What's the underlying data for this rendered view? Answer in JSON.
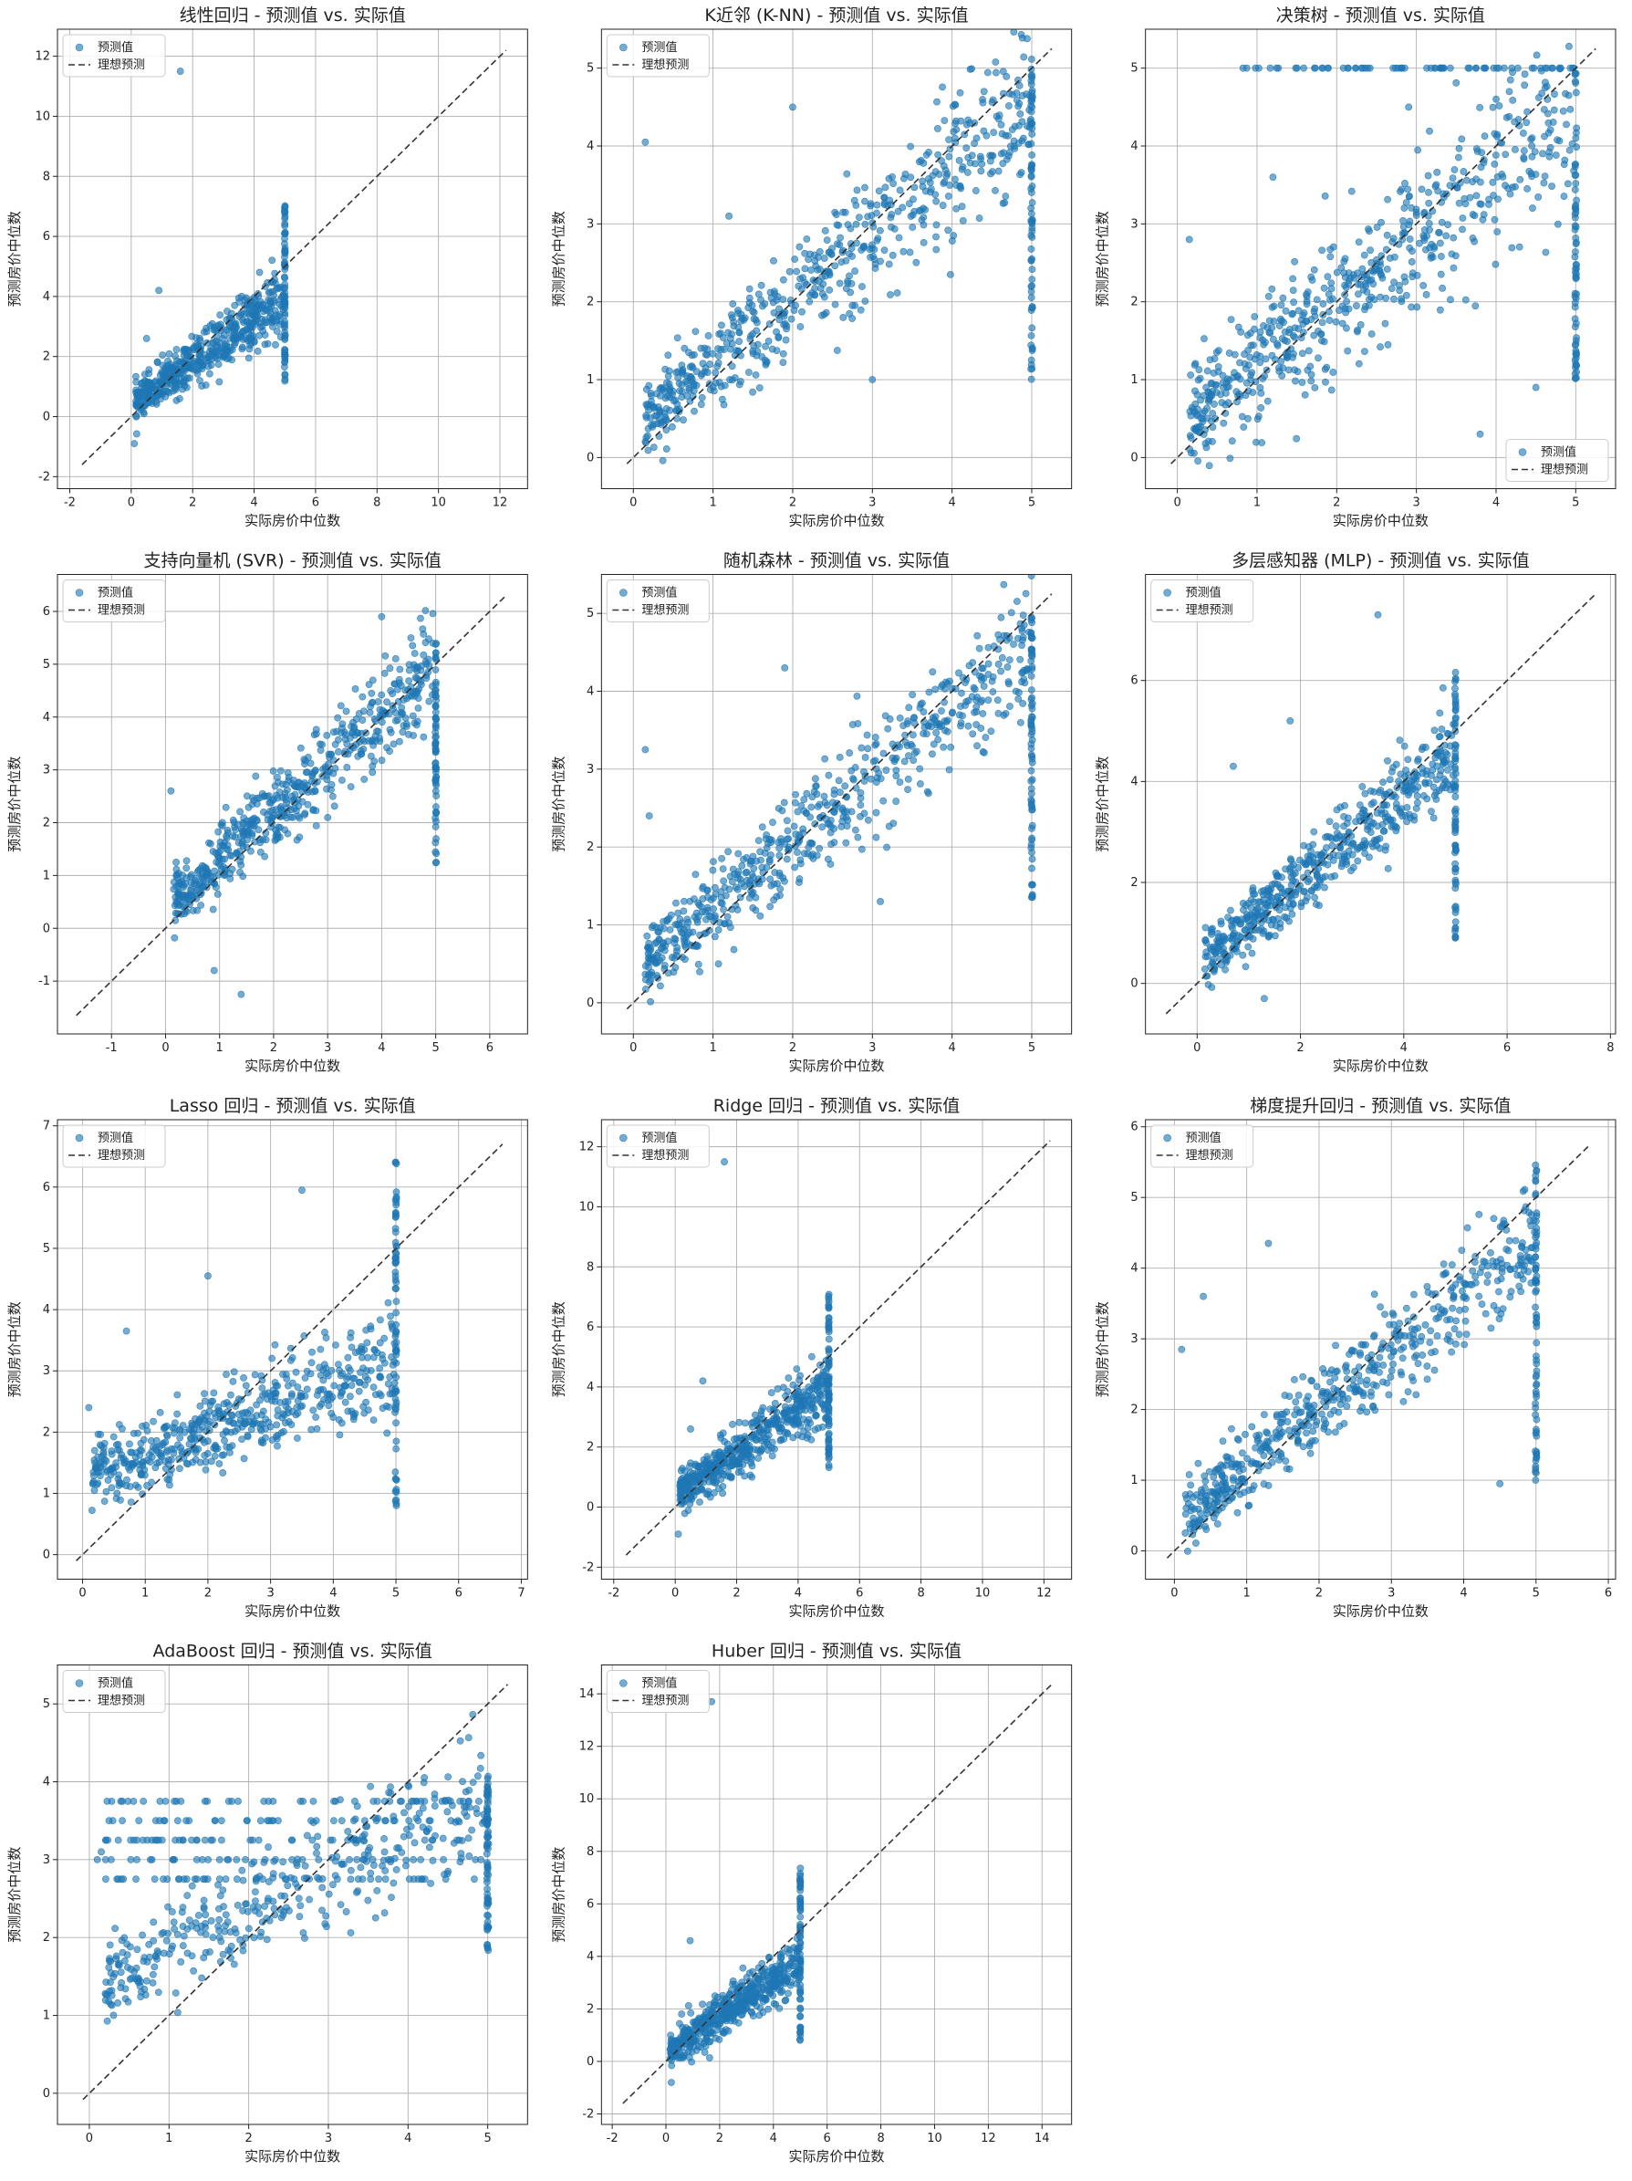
{
  "legend_labels": {
    "predicted": "预测值",
    "ideal": "理想预测"
  },
  "colors": {
    "points": "#1f77b4",
    "ideal_line": "#333333",
    "grid": "#b0b0b0"
  },
  "chart_data": [
    {
      "type": "scatter",
      "title": "线性回归 - 预测值 vs. 实际值",
      "xlabel": "实际房价中位数",
      "ylabel": "预测房价中位数",
      "xlim": [
        -2.4,
        12.9
      ],
      "ylim": [
        -2.4,
        12.9
      ],
      "xticks": [
        -2,
        0,
        2,
        4,
        6,
        8,
        10,
        12
      ],
      "yticks": [
        -2,
        0,
        2,
        4,
        6,
        8,
        10,
        12
      ],
      "ideal_range": [
        -1.6,
        12.2
      ],
      "legend_position": "upper-left",
      "grid": true,
      "cloud": {
        "x_range": [
          0.15,
          5.0
        ],
        "slope": 0.72,
        "intercept": 0.38,
        "spread": 0.55,
        "count": 520,
        "cap_x": 5.0,
        "cap_y_range": [
          1.0,
          7.2
        ]
      },
      "outliers": [
        [
          1.6,
          11.5
        ],
        [
          0.9,
          4.2
        ],
        [
          0.5,
          2.6
        ],
        [
          0.1,
          -0.9
        ]
      ]
    },
    {
      "type": "scatter",
      "title": "K近邻 (K-NN) - 预测值 vs. 实际值",
      "xlabel": "实际房价中位数",
      "ylabel": "预测房价中位数",
      "xlim": [
        -0.4,
        5.5
      ],
      "ylim": [
        -0.4,
        5.5
      ],
      "xticks": [
        0,
        1,
        2,
        3,
        4,
        5
      ],
      "yticks": [
        0,
        1,
        2,
        3,
        4,
        5
      ],
      "ideal_range": [
        -0.08,
        5.25
      ],
      "legend_position": "upper-left",
      "grid": true,
      "cloud": {
        "x_range": [
          0.15,
          5.0
        ],
        "slope": 0.82,
        "intercept": 0.38,
        "spread": 0.5,
        "count": 600,
        "cap_x": 5.0,
        "cap_y_range": [
          0.9,
          5.0
        ]
      },
      "outliers": [
        [
          0.15,
          4.05
        ],
        [
          1.2,
          3.1
        ],
        [
          2.0,
          4.5
        ],
        [
          3.0,
          1.0
        ]
      ]
    },
    {
      "type": "scatter",
      "title": "决策树 - 预测值 vs. 实际值",
      "xlabel": "实际房价中位数",
      "ylabel": "预测房价中位数",
      "xlim": [
        -0.4,
        5.5
      ],
      "ylim": [
        -0.4,
        5.5
      ],
      "xticks": [
        0,
        1,
        2,
        3,
        4,
        5
      ],
      "yticks": [
        0,
        1,
        2,
        3,
        4,
        5
      ],
      "ideal_range": [
        -0.08,
        5.25
      ],
      "legend_position": "lower-right",
      "grid": true,
      "cloud": {
        "x_range": [
          0.15,
          5.0
        ],
        "slope": 0.82,
        "intercept": 0.35,
        "spread": 0.62,
        "count": 600,
        "cap_x": 5.0,
        "cap_y_range": [
          1.0,
          5.0
        ]
      },
      "top_band": {
        "y": 5.0,
        "x_range": [
          0.8,
          5.0
        ]
      },
      "outliers": [
        [
          0.15,
          2.8
        ],
        [
          3.8,
          0.3
        ],
        [
          4.5,
          0.9
        ],
        [
          1.2,
          3.6
        ]
      ]
    },
    {
      "type": "scatter",
      "title": "支持向量机 (SVR) - 预测值 vs. 实际值",
      "xlabel": "实际房价中位数",
      "ylabel": "预测房价中位数",
      "xlim": [
        -2.0,
        6.7
      ],
      "ylim": [
        -2.0,
        6.7
      ],
      "xticks": [
        -1,
        0,
        1,
        2,
        3,
        4,
        5,
        6
      ],
      "yticks": [
        -1,
        0,
        1,
        2,
        3,
        4,
        5,
        6
      ],
      "ideal_range": [
        -1.65,
        6.3
      ],
      "legend_position": "upper-left",
      "grid": true,
      "cloud": {
        "x_range": [
          0.15,
          5.0
        ],
        "slope": 0.9,
        "intercept": 0.4,
        "spread": 0.5,
        "count": 560,
        "cap_x": 5.0,
        "cap_y_range": [
          1.2,
          5.4
        ]
      },
      "outliers": [
        [
          1.4,
          -1.25
        ],
        [
          0.9,
          -0.8
        ],
        [
          4.0,
          5.9
        ],
        [
          0.1,
          2.6
        ]
      ]
    },
    {
      "type": "scatter",
      "title": "随机森林 - 预测值 vs. 实际值",
      "xlabel": "实际房价中位数",
      "ylabel": "预测房价中位数",
      "xlim": [
        -0.4,
        5.5
      ],
      "ylim": [
        -0.4,
        5.5
      ],
      "xticks": [
        0,
        1,
        2,
        3,
        4,
        5
      ],
      "yticks": [
        0,
        1,
        2,
        3,
        4,
        5
      ],
      "ideal_range": [
        -0.08,
        5.25
      ],
      "legend_position": "upper-left",
      "grid": true,
      "cloud": {
        "x_range": [
          0.15,
          5.0
        ],
        "slope": 0.85,
        "intercept": 0.35,
        "spread": 0.42,
        "count": 600,
        "cap_x": 5.0,
        "cap_y_range": [
          1.3,
          5.0
        ]
      },
      "outliers": [
        [
          0.15,
          3.25
        ],
        [
          0.2,
          2.4
        ],
        [
          1.9,
          4.3
        ],
        [
          3.1,
          1.3
        ]
      ]
    },
    {
      "type": "scatter",
      "title": "多层感知器 (MLP) - 预测值 vs. 实际值",
      "xlabel": "实际房价中位数",
      "ylabel": "预测房价中位数",
      "xlim": [
        -1.0,
        8.1
      ],
      "ylim": [
        -1.0,
        8.1
      ],
      "xticks": [
        0,
        2,
        4,
        6,
        8
      ],
      "yticks": [
        0,
        2,
        4,
        6
      ],
      "ideal_range": [
        -0.6,
        7.7
      ],
      "legend_position": "upper-left",
      "grid": true,
      "cloud": {
        "x_range": [
          0.15,
          5.0
        ],
        "slope": 0.85,
        "intercept": 0.35,
        "spread": 0.45,
        "count": 540,
        "cap_x": 5.0,
        "cap_y_range": [
          0.8,
          6.3
        ]
      },
      "outliers": [
        [
          3.5,
          7.3
        ],
        [
          1.8,
          5.2
        ],
        [
          1.3,
          -0.3
        ],
        [
          0.7,
          4.3
        ]
      ]
    },
    {
      "type": "scatter",
      "title": "Lasso 回归 - 预测值 vs. 实际值",
      "xlabel": "实际房价中位数",
      "ylabel": "预测房价中位数",
      "xlim": [
        -0.4,
        7.1
      ],
      "ylim": [
        -0.4,
        7.1
      ],
      "xticks": [
        0,
        1,
        2,
        3,
        4,
        5,
        6,
        7
      ],
      "yticks": [
        0,
        1,
        2,
        3,
        4,
        5,
        6,
        7
      ],
      "ideal_range": [
        -0.1,
        6.7
      ],
      "legend_position": "upper-left",
      "grid": true,
      "cloud": {
        "x_range": [
          0.15,
          5.0
        ],
        "slope": 0.4,
        "intercept": 1.2,
        "spread": 0.42,
        "count": 540,
        "cap_x": 5.0,
        "cap_y_range": [
          0.8,
          6.45
        ]
      },
      "outliers": [
        [
          3.5,
          5.95
        ],
        [
          2.0,
          4.55
        ],
        [
          0.7,
          3.65
        ],
        [
          0.1,
          2.4
        ]
      ]
    },
    {
      "type": "scatter",
      "title": "Ridge 回归 - 预测值 vs. 实际值",
      "xlabel": "实际房价中位数",
      "ylabel": "预测房价中位数",
      "xlim": [
        -2.4,
        12.9
      ],
      "ylim": [
        -2.4,
        12.9
      ],
      "xticks": [
        -2,
        0,
        2,
        4,
        6,
        8,
        10,
        12
      ],
      "yticks": [
        -2,
        0,
        2,
        4,
        6,
        8,
        10,
        12
      ],
      "ideal_range": [
        -1.6,
        12.2
      ],
      "legend_position": "upper-left",
      "grid": true,
      "cloud": {
        "x_range": [
          0.15,
          5.0
        ],
        "slope": 0.72,
        "intercept": 0.38,
        "spread": 0.55,
        "count": 520,
        "cap_x": 5.0,
        "cap_y_range": [
          1.0,
          7.2
        ]
      },
      "outliers": [
        [
          1.6,
          11.5
        ],
        [
          0.9,
          4.2
        ],
        [
          0.5,
          2.6
        ],
        [
          0.1,
          -0.9
        ]
      ]
    },
    {
      "type": "scatter",
      "title": "梯度提升回归 - 预测值 vs. 实际值",
      "xlabel": "实际房价中位数",
      "ylabel": "预测房价中位数",
      "xlim": [
        -0.4,
        6.1
      ],
      "ylim": [
        -0.4,
        6.1
      ],
      "xticks": [
        0,
        1,
        2,
        3,
        4,
        5,
        6
      ],
      "yticks": [
        0,
        1,
        2,
        3,
        4,
        5,
        6
      ],
      "ideal_range": [
        -0.1,
        5.75
      ],
      "legend_position": "upper-left",
      "grid": true,
      "cloud": {
        "x_range": [
          0.15,
          5.0
        ],
        "slope": 0.8,
        "intercept": 0.4,
        "spread": 0.42,
        "count": 560,
        "cap_x": 5.0,
        "cap_y_range": [
          0.95,
          5.55
        ]
      },
      "outliers": [
        [
          1.3,
          4.35
        ],
        [
          0.4,
          3.6
        ],
        [
          0.1,
          2.85
        ],
        [
          4.5,
          0.95
        ]
      ]
    },
    {
      "type": "scatter",
      "title": "AdaBoost 回归 - 预测值 vs. 实际值",
      "xlabel": "实际房价中位数",
      "ylabel": "预测房价中位数",
      "xlim": [
        -0.4,
        5.5
      ],
      "ylim": [
        -0.4,
        5.5
      ],
      "xticks": [
        0,
        1,
        2,
        3,
        4,
        5
      ],
      "yticks": [
        0,
        1,
        2,
        3,
        4,
        5
      ],
      "ideal_range": [
        -0.08,
        5.25
      ],
      "legend_position": "upper-left",
      "grid": true,
      "cloud": {
        "x_range": [
          0.2,
          5.0
        ],
        "slope": 0.5,
        "intercept": 1.3,
        "spread": 0.45,
        "count": 560,
        "cap_x": 5.0,
        "cap_y_range": [
          1.8,
          4.1
        ]
      },
      "bands": [
        2.75,
        3.0,
        3.25,
        3.5,
        3.75
      ],
      "outliers": [
        [
          0.15,
          3.1
        ],
        [
          0.1,
          3.0
        ],
        [
          0.25,
          1.7
        ]
      ]
    },
    {
      "type": "scatter",
      "title": "Huber 回归 - 预测值 vs. 实际值",
      "xlabel": "实际房价中位数",
      "ylabel": "预测房价中位数",
      "xlim": [
        -2.4,
        15.1
      ],
      "ylim": [
        -2.4,
        15.1
      ],
      "xticks": [
        -2,
        0,
        2,
        4,
        6,
        8,
        10,
        12,
        14
      ],
      "yticks": [
        -2,
        0,
        2,
        4,
        6,
        8,
        10,
        12,
        14
      ],
      "ideal_range": [
        -1.6,
        14.4
      ],
      "legend_position": "upper-left",
      "grid": true,
      "cloud": {
        "x_range": [
          0.15,
          5.0
        ],
        "slope": 0.7,
        "intercept": 0.3,
        "spread": 0.55,
        "count": 520,
        "cap_x": 5.0,
        "cap_y_range": [
          0.8,
          7.4
        ]
      },
      "outliers": [
        [
          1.7,
          13.7
        ],
        [
          0.9,
          4.6
        ],
        [
          0.2,
          -0.8
        ]
      ]
    }
  ]
}
